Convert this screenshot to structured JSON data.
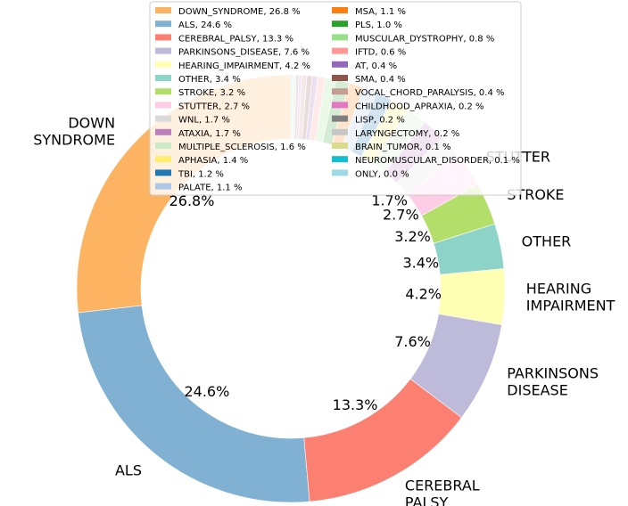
{
  "chart_data": {
    "type": "pie",
    "style": "donut",
    "legend_position": "top",
    "slices": [
      {
        "label": "DOWN_SYNDROME",
        "display": [
          "DOWN",
          "SYNDROME"
        ],
        "value": 26.8,
        "pct": "26.8%",
        "legend": "DOWN_SYNDROME, 26.8 %",
        "color": "#fdb462"
      },
      {
        "label": "ALS",
        "display": [
          "ALS"
        ],
        "value": 24.6,
        "pct": "24.6%",
        "legend": "ALS, 24.6 %",
        "color": "#80b1d3"
      },
      {
        "label": "CEREBRAL_PALSY",
        "display": [
          "CEREBRAL",
          "PALSY"
        ],
        "value": 13.3,
        "pct": "13.3%",
        "legend": "CEREBRAL_PALSY, 13.3 %",
        "color": "#fb8072"
      },
      {
        "label": "PARKINSONS_DISEASE",
        "display": [
          "PARKINSONS",
          "DISEASE"
        ],
        "value": 7.6,
        "pct": "7.6%",
        "legend": "PARKINSONS_DISEASE, 7.6 %",
        "color": "#bebada"
      },
      {
        "label": "HEARING_IMPAIRMENT",
        "display": [
          "HEARING",
          "IMPAIRMENT"
        ],
        "value": 4.2,
        "pct": "4.2%",
        "legend": "HEARING_IMPAIRMENT, 4.2 %",
        "color": "#ffffb3"
      },
      {
        "label": "OTHER",
        "display": [
          "OTHER"
        ],
        "value": 3.4,
        "pct": "3.4%",
        "legend": "OTHER, 3.4 %",
        "color": "#8dd3c7"
      },
      {
        "label": "STROKE",
        "display": [
          "STROKE"
        ],
        "value": 3.2,
        "pct": "3.2%",
        "legend": "STROKE, 3.2 %",
        "color": "#b3de69"
      },
      {
        "label": "STUTTER",
        "display": [
          "STUTTER"
        ],
        "value": 2.7,
        "pct": "2.7%",
        "legend": "STUTTER, 2.7 %",
        "color": "#fccde5"
      },
      {
        "label": "WNL",
        "display": [],
        "value": 1.7,
        "pct": "1.7%",
        "legend": "WNL, 1.7 %",
        "color": "#d9d9d9"
      },
      {
        "label": "ATAXIA",
        "display": [],
        "value": 1.7,
        "pct": "",
        "legend": "ATAXIA, 1.7 %",
        "color": "#bc80bd"
      },
      {
        "label": "MULTIPLE_SCLEROSIS",
        "display": [],
        "value": 1.6,
        "pct": "",
        "legend": "MULTIPLE_SCLEROSIS, 1.6 %",
        "color": "#ccebc5"
      },
      {
        "label": "APHASIA",
        "display": [],
        "value": 1.4,
        "pct": "",
        "legend": "APHASIA, 1.4 %",
        "color": "#ffed6f"
      },
      {
        "label": "TBI",
        "display": [],
        "value": 1.2,
        "pct": "",
        "legend": "TBI, 1.2 %",
        "color": "#1f77b4"
      },
      {
        "label": "PALATE",
        "display": [],
        "value": 1.1,
        "pct": "",
        "legend": "PALATE, 1.1 %",
        "color": "#aec7e8"
      },
      {
        "label": "MSA",
        "display": [],
        "value": 1.1,
        "pct": "",
        "legend": "MSA, 1.1 %",
        "color": "#ff7f0e"
      },
      {
        "label": "PLS",
        "display": [],
        "value": 1.0,
        "pct": "",
        "legend": "PLS, 1.0 %",
        "color": "#2ca02c"
      },
      {
        "label": "MUSCULAR_DYSTROPHY",
        "display": [],
        "value": 0.8,
        "pct": "",
        "legend": "MUSCULAR_DYSTROPHY, 0.8 %",
        "color": "#98df8a"
      },
      {
        "label": "IFTD",
        "display": [],
        "value": 0.6,
        "pct": "",
        "legend": "IFTD, 0.6 %",
        "color": "#ff9896"
      },
      {
        "label": "AT",
        "display": [],
        "value": 0.4,
        "pct": "",
        "legend": "AT, 0.4 %",
        "color": "#9467bd"
      },
      {
        "label": "SMA",
        "display": [],
        "value": 0.4,
        "pct": "",
        "legend": "SMA, 0.4 %",
        "color": "#8c564b"
      },
      {
        "label": "VOCAL_CHORD_PARALYSIS",
        "display": [],
        "value": 0.4,
        "pct": "",
        "legend": "VOCAL_CHORD_PARALYSIS, 0.4 %",
        "color": "#c49c94"
      },
      {
        "label": "CHILDHOOD_APRAXIA",
        "display": [],
        "value": 0.2,
        "pct": "",
        "legend": "CHILDHOOD_APRAXIA, 0.2 %",
        "color": "#e377c2"
      },
      {
        "label": "LISP",
        "display": [],
        "value": 0.2,
        "pct": "",
        "legend": "LISP, 0.2 %",
        "color": "#7f7f7f"
      },
      {
        "label": "LARYNGECTOMY",
        "display": [],
        "value": 0.2,
        "pct": "",
        "legend": "LARYNGECTOMY, 0.2 %",
        "color": "#c7c7c7"
      },
      {
        "label": "BRAIN_TUMOR",
        "display": [],
        "value": 0.1,
        "pct": "",
        "legend": "BRAIN_TUMOR, 0.1 %",
        "color": "#dbdb8d"
      },
      {
        "label": "NEUROMUSCULAR_DISORDER",
        "display": [],
        "value": 0.1,
        "pct": "",
        "legend": "NEUROMUSCULAR_DISORDER, 0.1 %",
        "color": "#17becf"
      },
      {
        "label": "ONLY",
        "display": [],
        "value": 0.0,
        "pct": "",
        "legend": "ONLY, 0.0 %",
        "color": "#9edae5"
      }
    ]
  }
}
